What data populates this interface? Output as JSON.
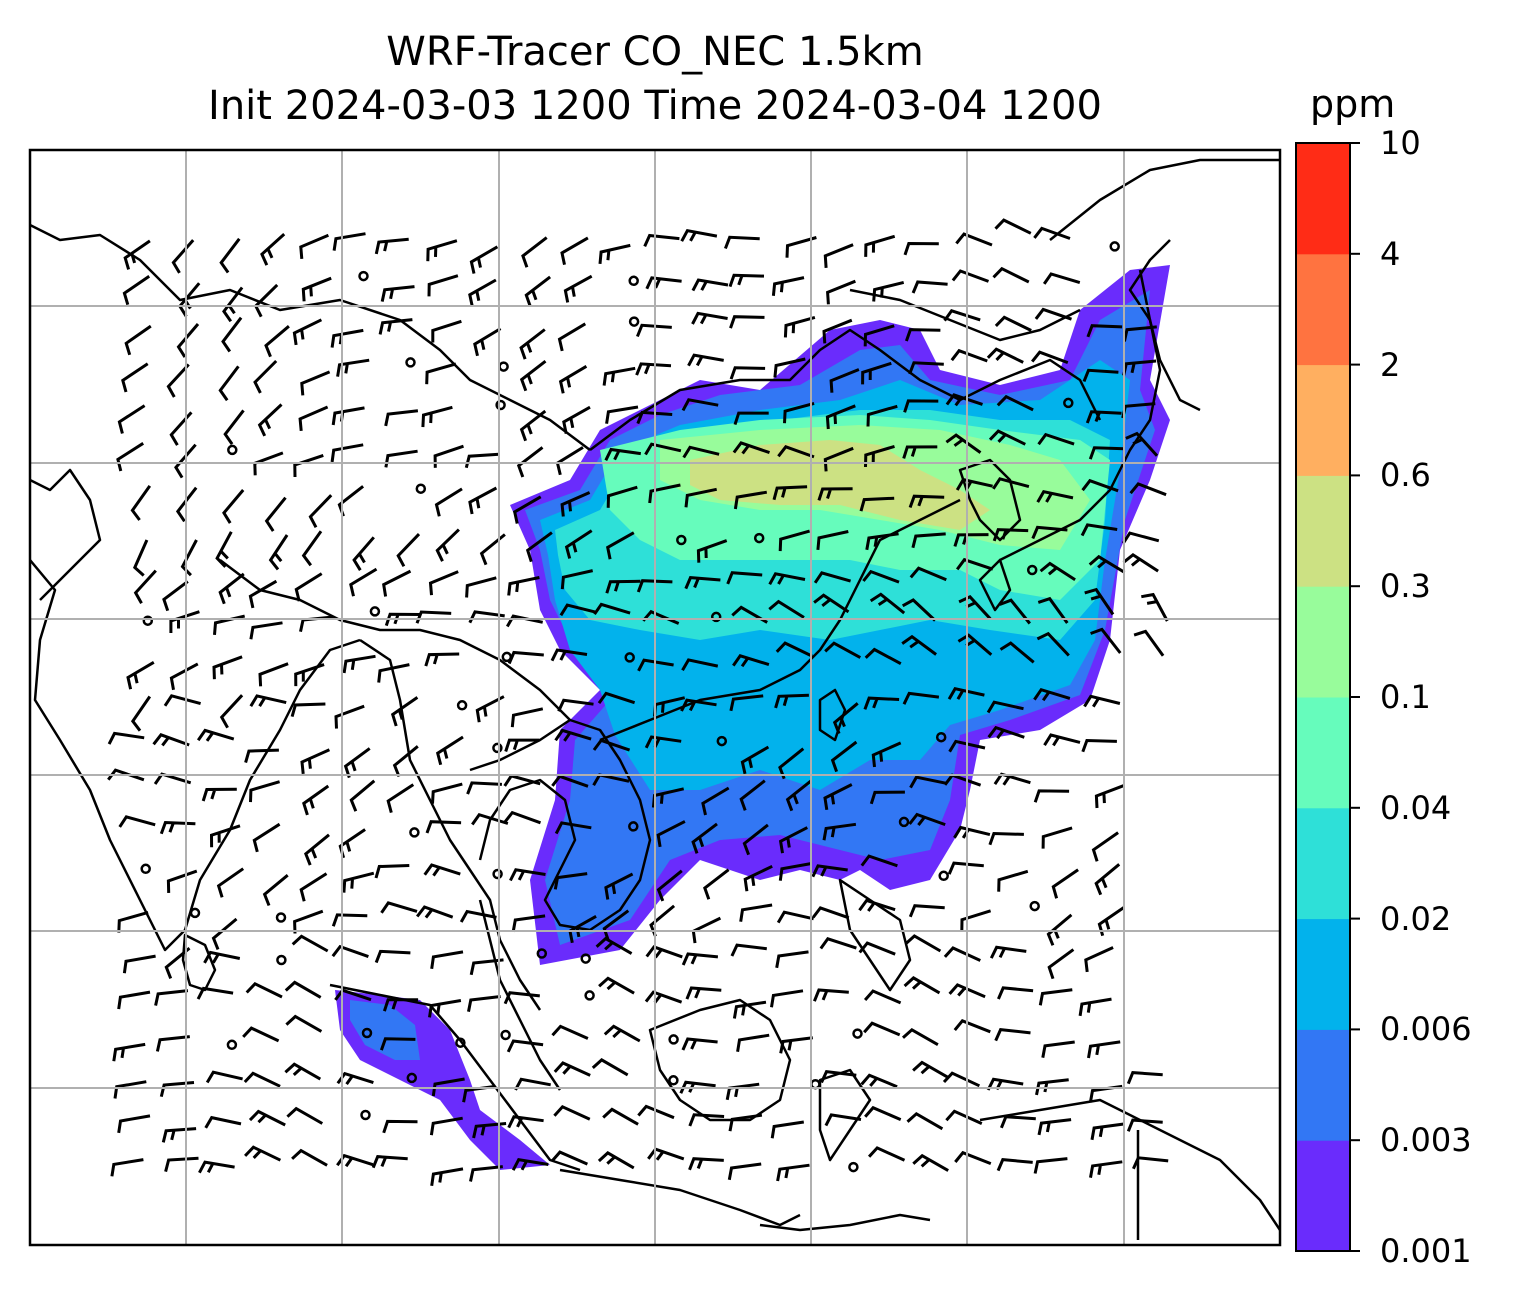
{
  "title": {
    "line1": "WRF-Tracer CO_NEC 1.5km",
    "line2": "Init 2024-03-03 1200 Time 2024-03-04 1200"
  },
  "colorbar": {
    "unit": "ppm",
    "levels": [
      "0.001",
      "0.003",
      "0.006",
      "0.02",
      "0.04",
      "0.1",
      "0.3",
      "0.6",
      "2",
      "4",
      "10"
    ],
    "colors": [
      "#6a2cfc",
      "#3277f4",
      "#02b2ec",
      "#2ee0d8",
      "#66fcbc",
      "#98fc9b",
      "#cce183",
      "#ffaf60",
      "#ff7340",
      "#ff2c16"
    ]
  },
  "colors": {
    "coast": "#000000",
    "grid": "#b0b0b0"
  }
}
